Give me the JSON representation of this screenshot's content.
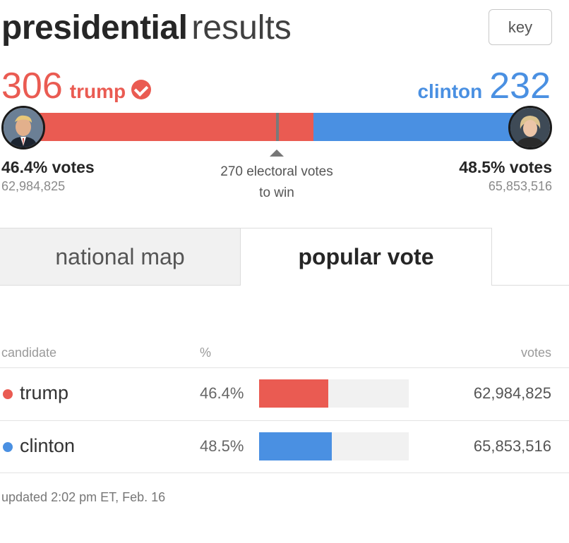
{
  "header": {
    "title_bold": "presidential",
    "title_light": "results",
    "key_label": "key"
  },
  "trump": {
    "electoral": "306",
    "name": "trump",
    "pct_label": "46.4% votes",
    "votes": "62,984,825",
    "bar_fraction": 0.5688,
    "avatar_icon": "trump-portrait-icon",
    "color": "#ea5b52"
  },
  "clinton": {
    "electoral": "232",
    "name": "clinton",
    "pct_label": "48.5% votes",
    "votes": "65,853,516",
    "bar_fraction": 0.4312,
    "avatar_icon": "clinton-portrait-icon",
    "color": "#4a90e2"
  },
  "win_threshold": {
    "line1": "270 electoral votes",
    "line2": "to win"
  },
  "tabs": [
    {
      "label": "national map",
      "active": false
    },
    {
      "label": "popular vote",
      "active": true
    }
  ],
  "table": {
    "headers": {
      "candidate": "candidate",
      "pct": "%",
      "votes": "votes"
    },
    "rows": [
      {
        "name": "trump",
        "pct": "46.4%",
        "share": 0.464,
        "votes": "62,984,825",
        "color": "#ea5b52"
      },
      {
        "name": "clinton",
        "pct": "48.5%",
        "share": 0.485,
        "votes": "65,853,516",
        "color": "#4a90e2"
      }
    ]
  },
  "updated": "updated 2:02 pm ET, Feb. 16"
}
